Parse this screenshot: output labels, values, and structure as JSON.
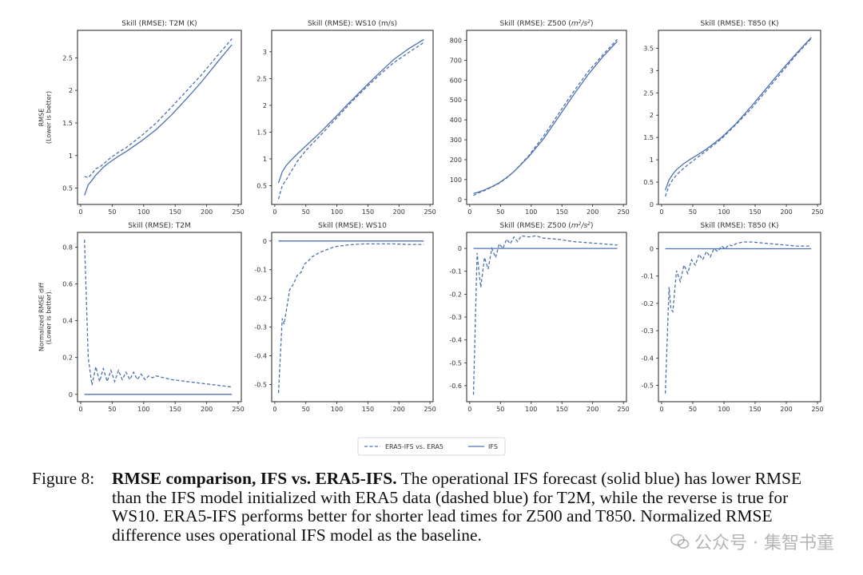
{
  "chart_data": [
    {
      "type": "line",
      "title": "Skill (RMSE): T2M (K)",
      "ylabel": "RMSE\n(Lower is better)",
      "xlim": [
        -5,
        255
      ],
      "ylim": [
        0.25,
        2.92
      ],
      "xticks": [
        0,
        50,
        100,
        150,
        200,
        250
      ],
      "yticks": [
        0.5,
        1.0,
        1.5,
        2.0,
        2.5
      ],
      "series": [
        {
          "name": "ERA5-IFS vs. ERA5",
          "style": "dashed",
          "x": [
            6,
            12,
            18,
            24,
            30,
            36,
            42,
            48,
            60,
            72,
            84,
            96,
            120,
            144,
            168,
            192,
            216,
            240
          ],
          "y": [
            0.68,
            0.66,
            0.72,
            0.8,
            0.82,
            0.87,
            0.92,
            0.97,
            1.05,
            1.12,
            1.21,
            1.3,
            1.5,
            1.74,
            1.99,
            2.24,
            2.52,
            2.79
          ]
        },
        {
          "name": "IFS",
          "style": "solid",
          "x": [
            6,
            12,
            18,
            24,
            30,
            36,
            42,
            48,
            60,
            72,
            84,
            96,
            120,
            144,
            168,
            192,
            216,
            240
          ],
          "y": [
            0.39,
            0.55,
            0.62,
            0.7,
            0.76,
            0.82,
            0.87,
            0.91,
            0.99,
            1.06,
            1.14,
            1.22,
            1.4,
            1.62,
            1.87,
            2.13,
            2.42,
            2.7
          ]
        }
      ]
    },
    {
      "type": "line",
      "title": "Skill (RMSE): WS10 (m/s)",
      "ylabel": "",
      "xlim": [
        -5,
        255
      ],
      "ylim": [
        0.15,
        3.4
      ],
      "xticks": [
        0,
        50,
        100,
        150,
        200,
        250
      ],
      "yticks": [
        0.5,
        1.0,
        1.5,
        2.0,
        2.5,
        3.0
      ],
      "series": [
        {
          "name": "ERA5-IFS vs. ERA5",
          "style": "dashed",
          "x": [
            6,
            12,
            18,
            24,
            36,
            48,
            60,
            72,
            96,
            120,
            144,
            168,
            192,
            216,
            240
          ],
          "y": [
            0.25,
            0.5,
            0.6,
            0.72,
            0.95,
            1.13,
            1.28,
            1.42,
            1.72,
            2.02,
            2.3,
            2.56,
            2.8,
            2.99,
            3.17
          ]
        },
        {
          "name": "IFS",
          "style": "solid",
          "x": [
            6,
            12,
            18,
            24,
            36,
            48,
            60,
            72,
            96,
            120,
            144,
            168,
            192,
            216,
            240
          ],
          "y": [
            0.55,
            0.76,
            0.87,
            0.95,
            1.09,
            1.22,
            1.35,
            1.48,
            1.76,
            2.05,
            2.33,
            2.6,
            2.86,
            3.06,
            3.23
          ]
        }
      ]
    },
    {
      "type": "line",
      "title": "Skill (RMSE): Z500 (m²/s²)",
      "title_prefix": "Skill (RMSE): Z500 (",
      "title_unit_base": "m",
      "title_unit_sup": "2",
      "title_unit_mid": "/s",
      "title_unit_sup2": "2",
      "title_suffix": ")",
      "ylabel": "",
      "xlim": [
        -5,
        255
      ],
      "ylim": [
        -25,
        850
      ],
      "xticks": [
        0,
        50,
        100,
        150,
        200,
        250
      ],
      "yticks": [
        0,
        100,
        200,
        300,
        400,
        500,
        600,
        700,
        800
      ],
      "series": [
        {
          "name": "ERA5-IFS vs. ERA5",
          "style": "dashed",
          "x": [
            6,
            12,
            24,
            36,
            48,
            60,
            72,
            96,
            120,
            144,
            168,
            192,
            216,
            240
          ],
          "y": [
            20,
            30,
            45,
            62,
            82,
            108,
            140,
            220,
            318,
            428,
            538,
            640,
            725,
            805
          ]
        },
        {
          "name": "IFS",
          "style": "solid",
          "x": [
            6,
            12,
            24,
            36,
            48,
            60,
            72,
            96,
            120,
            144,
            168,
            192,
            216,
            240
          ],
          "y": [
            30,
            35,
            48,
            64,
            84,
            110,
            140,
            215,
            305,
            412,
            522,
            625,
            715,
            795
          ]
        }
      ]
    },
    {
      "type": "line",
      "title": "Skill (RMSE): T850 (K)",
      "ylabel": "",
      "xlim": [
        -5,
        255
      ],
      "ylim": [
        0.0,
        3.9
      ],
      "xticks": [
        0,
        50,
        100,
        150,
        200,
        250
      ],
      "yticks": [
        0.0,
        0.5,
        1.0,
        1.5,
        2.0,
        2.5,
        3.0,
        3.5
      ],
      "series": [
        {
          "name": "ERA5-IFS vs. ERA5",
          "style": "dashed",
          "x": [
            6,
            12,
            18,
            24,
            36,
            48,
            60,
            72,
            96,
            120,
            144,
            168,
            192,
            216,
            240
          ],
          "y": [
            0.18,
            0.42,
            0.56,
            0.66,
            0.82,
            0.95,
            1.08,
            1.2,
            1.47,
            1.8,
            2.15,
            2.55,
            2.95,
            3.35,
            3.72
          ]
        },
        {
          "name": "IFS",
          "style": "solid",
          "x": [
            6,
            12,
            18,
            24,
            36,
            48,
            60,
            72,
            96,
            120,
            144,
            168,
            192,
            216,
            240
          ],
          "y": [
            0.32,
            0.55,
            0.68,
            0.78,
            0.92,
            1.03,
            1.13,
            1.24,
            1.5,
            1.82,
            2.2,
            2.6,
            3.0,
            3.38,
            3.74
          ]
        }
      ]
    },
    {
      "type": "line",
      "title": "Skill (RMSE): T2M",
      "ylabel": "Normalized RMSE diff\n(Lower is better).",
      "xlim": [
        -5,
        255
      ],
      "ylim": [
        -0.04,
        0.88
      ],
      "xticks": [
        0,
        50,
        100,
        150,
        200,
        250
      ],
      "yticks": [
        0.0,
        0.2,
        0.4,
        0.6,
        0.8
      ],
      "series": [
        {
          "name": "ERA5-IFS vs. ERA5",
          "style": "dashed",
          "x": [
            6,
            12,
            18,
            24,
            30,
            36,
            42,
            48,
            54,
            60,
            66,
            72,
            78,
            84,
            90,
            96,
            102,
            108,
            114,
            120,
            144,
            168,
            192,
            216,
            240
          ],
          "y": [
            0.84,
            0.2,
            0.05,
            0.15,
            0.07,
            0.14,
            0.07,
            0.13,
            0.07,
            0.13,
            0.08,
            0.12,
            0.08,
            0.12,
            0.08,
            0.11,
            0.08,
            0.1,
            0.09,
            0.1,
            0.08,
            0.07,
            0.06,
            0.05,
            0.04
          ]
        },
        {
          "name": "IFS",
          "style": "solid",
          "x": [
            6,
            240
          ],
          "y": [
            0.0,
            0.0
          ]
        }
      ]
    },
    {
      "type": "line",
      "title": "Skill (RMSE): WS10",
      "ylabel": "",
      "xlim": [
        -5,
        255
      ],
      "ylim": [
        -0.56,
        0.03
      ],
      "xticks": [
        0,
        50,
        100,
        150,
        200,
        250
      ],
      "yticks": [
        0.0,
        -0.1,
        -0.2,
        -0.3,
        -0.4,
        -0.5
      ],
      "series": [
        {
          "name": "ERA5-IFS vs. ERA5",
          "style": "dashed",
          "x": [
            6,
            12,
            15,
            18,
            24,
            30,
            36,
            42,
            48,
            54,
            60,
            72,
            84,
            96,
            120,
            144,
            168,
            192,
            216,
            240
          ],
          "y": [
            -0.53,
            -0.27,
            -0.29,
            -0.25,
            -0.17,
            -0.15,
            -0.12,
            -0.11,
            -0.08,
            -0.07,
            -0.055,
            -0.04,
            -0.03,
            -0.02,
            -0.013,
            -0.01,
            -0.01,
            -0.01,
            -0.012,
            -0.012
          ]
        },
        {
          "name": "IFS",
          "style": "solid",
          "x": [
            6,
            240
          ],
          "y": [
            0.0,
            0.0
          ]
        }
      ]
    },
    {
      "type": "line",
      "title": "Skill (RMSE): Z500 (m²/s²)",
      "title_prefix": "Skill (RMSE): Z500 (",
      "title_unit_base": "m",
      "title_unit_sup": "2",
      "title_unit_mid": "/s",
      "title_unit_sup2": "2",
      "title_suffix": ")",
      "ylabel": "",
      "xlim": [
        -5,
        255
      ],
      "ylim": [
        -0.67,
        0.07
      ],
      "xticks": [
        0,
        50,
        100,
        150,
        200,
        250
      ],
      "yticks": [
        0.0,
        -0.1,
        -0.2,
        -0.3,
        -0.4,
        -0.5,
        -0.6
      ],
      "series": [
        {
          "name": "ERA5-IFS vs. ERA5",
          "style": "dashed",
          "x": [
            6,
            12,
            15,
            18,
            24,
            30,
            36,
            42,
            48,
            54,
            60,
            66,
            72,
            78,
            84,
            96,
            108,
            120,
            144,
            168,
            192,
            216,
            240
          ],
          "y": [
            -0.64,
            -0.02,
            -0.1,
            -0.17,
            -0.04,
            -0.09,
            0.0,
            -0.04,
            0.02,
            0.0,
            0.04,
            0.02,
            0.05,
            0.03,
            0.055,
            0.05,
            0.055,
            0.045,
            0.04,
            0.03,
            0.025,
            0.02,
            0.015
          ]
        },
        {
          "name": "IFS",
          "style": "solid",
          "x": [
            6,
            240
          ],
          "y": [
            0.0,
            0.0
          ]
        }
      ]
    },
    {
      "type": "line",
      "title": "Skill (RMSE): T850 (K)",
      "ylabel": "",
      "xlim": [
        -5,
        255
      ],
      "ylim": [
        -0.56,
        0.06
      ],
      "xticks": [
        0,
        50,
        100,
        150,
        200,
        250
      ],
      "yticks": [
        0.0,
        -0.1,
        -0.2,
        -0.3,
        -0.4,
        -0.5
      ],
      "series": [
        {
          "name": "ERA5-IFS vs. ERA5",
          "style": "dashed",
          "x": [
            6,
            12,
            15,
            18,
            24,
            30,
            36,
            42,
            48,
            54,
            60,
            66,
            72,
            78,
            84,
            90,
            96,
            102,
            108,
            114,
            120,
            132,
            144,
            168,
            192,
            216,
            240
          ],
          "y": [
            -0.53,
            -0.14,
            -0.22,
            -0.23,
            -0.08,
            -0.12,
            -0.06,
            -0.09,
            -0.04,
            -0.06,
            -0.02,
            -0.04,
            -0.01,
            -0.03,
            0.0,
            -0.01,
            0.01,
            0.0,
            0.015,
            0.01,
            0.02,
            0.025,
            0.025,
            0.02,
            0.015,
            0.01,
            0.01
          ]
        },
        {
          "name": "IFS",
          "style": "solid",
          "x": [
            6,
            240
          ],
          "y": [
            0.0,
            0.0
          ]
        }
      ]
    }
  ],
  "legend": {
    "dashed_label": "ERA5-IFS vs. ERA5",
    "solid_label": "IFS"
  },
  "caption": {
    "label": "Figure 8:",
    "bold": "RMSE comparison, IFS vs. ERA5-IFS.",
    "text": " The operational IFS forecast (solid blue) has lower RMSE than the IFS model initialized with ERA5 data (dashed blue) for T2M, while the reverse is true for WS10. ERA5-IFS performs better for shorter lead times for Z500 and T850. Normalized RMSE difference uses operational IFS model as the baseline."
  },
  "watermark": {
    "text": "公众号 · 集智书童",
    "icon": "wechat-icon"
  },
  "colors": {
    "series": "#4c72b0",
    "frame": "#222222",
    "text": "#333333"
  }
}
